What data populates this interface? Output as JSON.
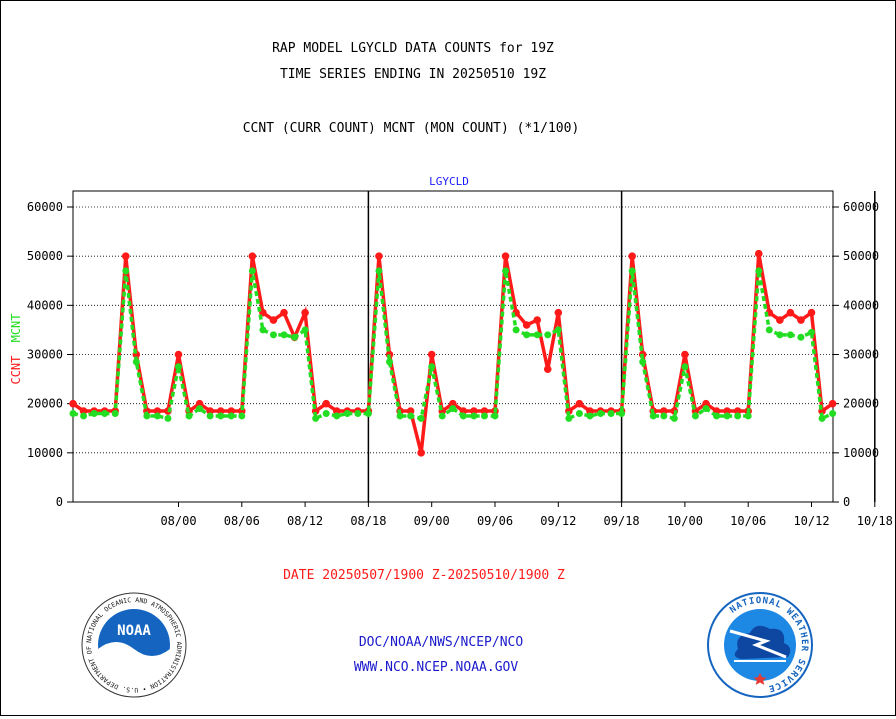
{
  "titles": {
    "line1": "RAP MODEL LGYCLD DATA COUNTS for 19Z",
    "line2": "TIME SERIES ENDING IN 20250510 19Z",
    "line3": "CCNT (CURR COUNT) MCNT (MON COUNT) (*1/100)"
  },
  "footer": {
    "date_range": "DATE 20250507/1900 Z-20250510/1900 Z",
    "link1": "DOC/NOAA/NWS/NCEP/NCO",
    "link2": "WWW.NCO.NCEP.NOAA.GOV"
  },
  "logos": {
    "noaa_text": "NOAA",
    "noaa_ring": "NATIONAL OCEANIC AND ATMOSPHERIC ADMINISTRATION • U.S. DEPARTMENT OF COMMERCE •",
    "nws_ring": "NATIONAL WEATHER SERVICE"
  },
  "colors": {
    "ccnt": "#ff1a1a",
    "mcnt": "#22dd22",
    "panel_title": "#1a1aff",
    "date": "#ff1a1a",
    "links": "#1a1acc"
  },
  "chart_data": {
    "type": "line",
    "title": "LGYCLD",
    "ylabel_parts": [
      "CCNT",
      "MCNT"
    ],
    "ylim": [
      0,
      60000
    ],
    "yticks": [
      0,
      10000,
      20000,
      30000,
      40000,
      50000,
      60000
    ],
    "xlim": [
      -5,
      67
    ],
    "xticks": [
      {
        "pos": 5,
        "label": "08/00"
      },
      {
        "pos": 11,
        "label": "08/06"
      },
      {
        "pos": 17,
        "label": "08/12"
      },
      {
        "pos": 23,
        "label": "08/18"
      },
      {
        "pos": 29,
        "label": "09/00"
      },
      {
        "pos": 35,
        "label": "09/06"
      },
      {
        "pos": 41,
        "label": "09/12"
      },
      {
        "pos": 47,
        "label": "09/18"
      },
      {
        "pos": 53,
        "label": "10/00"
      },
      {
        "pos": 59,
        "label": "10/06"
      },
      {
        "pos": 65,
        "label": "10/12"
      },
      {
        "pos": 71,
        "label": "10/18"
      }
    ],
    "x_units": "hours since 08/00 minus 0; 1 point per hour",
    "grid": true,
    "day_dividers": [
      23,
      47,
      71
    ],
    "series": [
      {
        "name": "CCNT",
        "values": [
          20000,
          18500,
          18500,
          18500,
          18500,
          50000,
          30000,
          18500,
          18500,
          18500,
          30000,
          18500,
          20000,
          18500,
          18500,
          18500,
          18500,
          50000,
          38500,
          37000,
          38500,
          33500,
          38500,
          18500,
          20000,
          18500,
          18500,
          18500,
          18500,
          50000,
          30000,
          18500,
          18500,
          10000,
          30000,
          18500,
          20000,
          18500,
          18500,
          18500,
          18500,
          50000,
          38500,
          36000,
          37000,
          27000,
          38500,
          18500,
          20000,
          18500,
          18500,
          18500,
          18500,
          50000,
          30000,
          18500,
          18500,
          18500,
          30000,
          18500,
          20000,
          18500,
          18500,
          18500,
          18500,
          50500,
          38500,
          37000,
          38500,
          37000,
          38500,
          18500,
          20000
        ]
      },
      {
        "name": "MCNT",
        "values": [
          18000,
          17500,
          18000,
          18000,
          18000,
          47000,
          28500,
          17500,
          17500,
          17000,
          27500,
          17500,
          19000,
          17500,
          17500,
          17500,
          17500,
          47000,
          35000,
          34000,
          34000,
          33500,
          35000,
          17000,
          18000,
          17500,
          18000,
          18000,
          18000,
          47000,
          28500,
          17500,
          17500,
          17000,
          27500,
          17500,
          19000,
          17500,
          17500,
          17500,
          17500,
          47000,
          35000,
          34000,
          34000,
          34000,
          35000,
          17000,
          18000,
          17500,
          18000,
          18000,
          18000,
          47000,
          28500,
          17500,
          17500,
          17000,
          27500,
          17500,
          19000,
          17500,
          17500,
          17500,
          17500,
          47000,
          35000,
          34000,
          34000,
          33500,
          34500,
          17000,
          18000
        ]
      }
    ]
  }
}
